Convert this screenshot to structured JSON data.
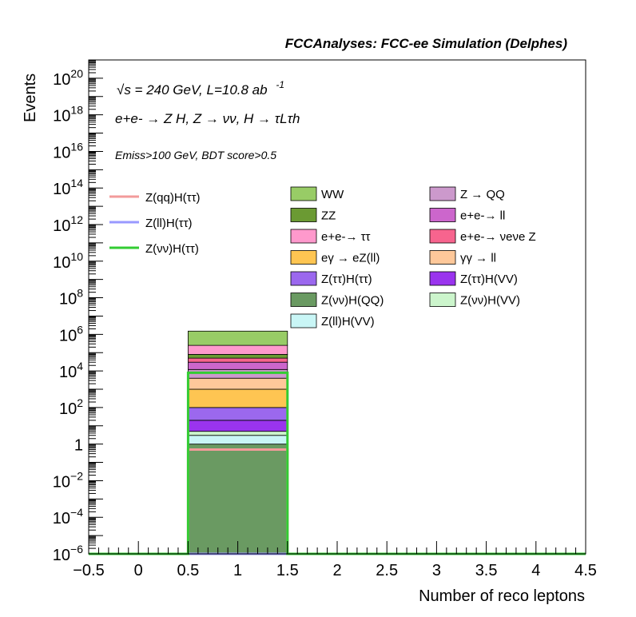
{
  "chart_data": {
    "type": "bar",
    "title": "FCCAnalyses: FCC-ee Simulation (Delphes)",
    "xlabel": "Number of reco leptons",
    "ylabel": "Events",
    "xlim": [
      -0.5,
      4.5
    ],
    "ylim": [
      1e-06,
      1e+21
    ],
    "y_scale": "log",
    "grid": false,
    "bin": [
      0.5,
      1.5
    ],
    "x_ticks": [
      "−0.5",
      "0",
      "0.5",
      "1",
      "1.5",
      "2",
      "2.5",
      "3",
      "3.5",
      "4",
      "4.5"
    ],
    "x_tick_values": [
      -0.5,
      0,
      0.5,
      1,
      1.5,
      2,
      2.5,
      3,
      3.5,
      4,
      4.5
    ],
    "y_ticks": [
      {
        "value": 1e+20,
        "base": "10",
        "exp": "20"
      },
      {
        "value": 1e+18,
        "base": "10",
        "exp": "18"
      },
      {
        "value": 1e+16,
        "base": "10",
        "exp": "16"
      },
      {
        "value": 100000000000000.0,
        "base": "10",
        "exp": "14"
      },
      {
        "value": 1000000000000.0,
        "base": "10",
        "exp": "12"
      },
      {
        "value": 10000000000.0,
        "base": "10",
        "exp": "10"
      },
      {
        "value": 100000000.0,
        "base": "10",
        "exp": "8"
      },
      {
        "value": 1000000.0,
        "base": "10",
        "exp": "6"
      },
      {
        "value": 10000.0,
        "base": "10",
        "exp": "4"
      },
      {
        "value": 100.0,
        "base": "10",
        "exp": "2"
      },
      {
        "value": 1,
        "base": "1",
        "exp": ""
      },
      {
        "value": 0.01,
        "base": "10",
        "exp": "−2"
      },
      {
        "value": 0.0001,
        "base": "10",
        "exp": "−4"
      },
      {
        "value": 1e-06,
        "base": "10",
        "exp": "−6"
      }
    ],
    "annotations": {
      "line1": "√s = 240 GeV, L=10.8 ab",
      "line1_sup": "-1",
      "line2": "e+e- → Z H, Z → νν, H → τLτh",
      "line3": "Emiss>100 GeV, BDT score>0.5"
    },
    "stack": [
      {
        "name": "Z(νν)H(QQ)",
        "color": "#6a9a62",
        "top": 1.0
      },
      {
        "name": "Z(ll)H(VV)",
        "color": "#c9f6f6",
        "top": 3.0
      },
      {
        "name": "Z(νν)H(VV)",
        "color": "#ccf5cc",
        "top": 5.0
      },
      {
        "name": "Z(ττ)H(VV)",
        "color": "#9a34ee",
        "top": 20
      },
      {
        "name": "Z(ττ)H(ττ)",
        "color": "#9b68ee",
        "top": 100
      },
      {
        "name": "eγ → eZ(ll)",
        "color": "#fec552",
        "top": 1000
      },
      {
        "name": "γγ → ll",
        "color": "#fec89a",
        "top": 4000
      },
      {
        "name": "Z → QQ",
        "color": "#cc99cc",
        "top": 12000
      },
      {
        "name": "e+e- → ll",
        "color": "#cc66cc",
        "top": 30000
      },
      {
        "name": "e+e- → νeνe Z",
        "color": "#f7648e",
        "top": 50000
      },
      {
        "name": "ZZ",
        "color": "#6b9a33",
        "top": 80000
      },
      {
        "name": "e+e- → ττ",
        "color": "#fe99cc",
        "top": 250000
      },
      {
        "name": "WW",
        "color": "#98cc66",
        "top": 1500000
      }
    ],
    "signals": [
      {
        "name": "Z(qq)H(ττ)",
        "color": "#f39b9b",
        "value": 0.5
      },
      {
        "name": "Z(ll)H(ττ)",
        "color": "#9999ff",
        "value": 1e-06
      },
      {
        "name": "Z(νν)H(ττ)",
        "color": "#33cc33",
        "value": 8000
      }
    ],
    "legend": {
      "placement": "top-right",
      "signals": [
        {
          "label": "Z(qq)H(ττ)",
          "color": "#f39b9b"
        },
        {
          "label": "Z(ll)H(ττ)",
          "color": "#9999ff"
        },
        {
          "label": "Z(νν)H(ττ)",
          "color": "#33cc33"
        }
      ],
      "col1": [
        {
          "label": "WW",
          "color": "#98cc66"
        },
        {
          "label": "ZZ",
          "color": "#6b9a33"
        },
        {
          "label": "e+e-→ ττ",
          "color": "#fe99cc"
        },
        {
          "label": "eγ → eZ(ll)",
          "color": "#fec552"
        },
        {
          "label": "Z(ττ)H(ττ)",
          "color": "#9b68ee"
        },
        {
          "label": "Z(νν)H(QQ)",
          "color": "#6a9a62"
        },
        {
          "label": "Z(ll)H(VV)",
          "color": "#c9f6f6"
        }
      ],
      "col2": [
        {
          "label": "Z → QQ",
          "color": "#cc99cc"
        },
        {
          "label": "e+e-→ ll",
          "color": "#cc66cc"
        },
        {
          "label": "e+e-→ νeνe Z",
          "color": "#f7648e"
        },
        {
          "label": "γγ → ll",
          "color": "#fec89a"
        },
        {
          "label": "Z(ττ)H(VV)",
          "color": "#9a34ee"
        },
        {
          "label": "Z(νν)H(VV)",
          "color": "#ccf5cc"
        }
      ]
    }
  }
}
